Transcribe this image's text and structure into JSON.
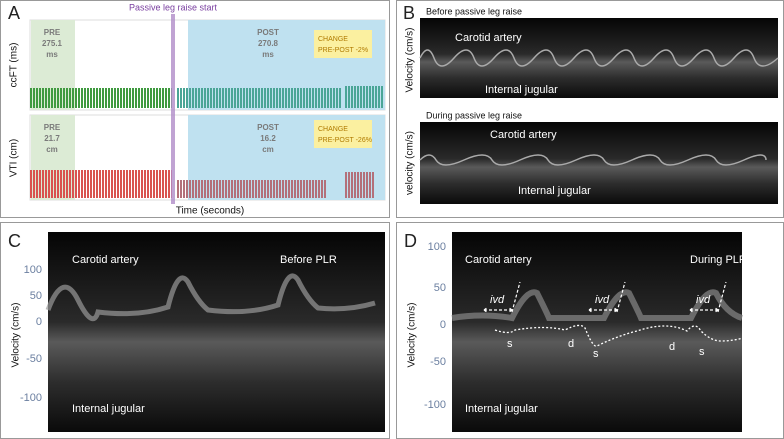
{
  "panels": {
    "a": {
      "label": "A",
      "annotation": "Passive leg raise start",
      "x_label": "Time (seconds)",
      "top": {
        "y_label": "ccFT (ms)",
        "pre": [
          "PRE",
          "275.1",
          "ms"
        ],
        "post": [
          "POST",
          "270.8",
          "ms"
        ],
        "change": [
          "CHANGE",
          "PRE-POST -2%"
        ]
      },
      "bottom": {
        "y_label": "VTI (cm)",
        "pre": [
          "PRE",
          "21.7",
          "cm"
        ],
        "post": [
          "POST",
          "16.2",
          "cm"
        ],
        "change": [
          "CHANGE",
          "PRE-POST -26%"
        ]
      }
    },
    "b": {
      "label": "B",
      "before": {
        "title": "Before passive leg raise",
        "y_label": "Velocity (cm/s)",
        "upper": "Carotid artery",
        "lower": "Internal jugular"
      },
      "during": {
        "title": "During passive leg raise",
        "y_label": "velocity (cm/s)",
        "upper": "Carotid artery",
        "lower": "Internal jugular"
      }
    },
    "c": {
      "label": "C",
      "y_label": "Velocity (cm/s)",
      "yticks": [
        100,
        50,
        0,
        -50,
        -100
      ],
      "upper": "Carotid artery",
      "condition": "Before PLR",
      "lower": "Internal jugular"
    },
    "d": {
      "label": "D",
      "y_label": "Velocity (cm/s)",
      "yticks": [
        100,
        50,
        0,
        -50,
        -100
      ],
      "upper": "Carotid artery",
      "condition": "During PLR",
      "lower": "Internal jugular",
      "ivd": [
        "ivd",
        "ivd",
        "ivd"
      ],
      "s": [
        "s",
        "s",
        "s"
      ],
      "d": [
        "d",
        "d"
      ]
    }
  }
}
